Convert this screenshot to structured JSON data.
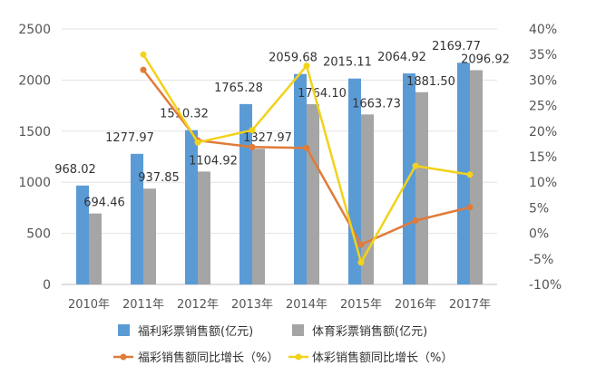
{
  "chart_data": {
    "type": "bar",
    "categories": [
      "2010年",
      "2011年",
      "2012年",
      "2013年",
      "2014年",
      "2015年",
      "2016年",
      "2017年"
    ],
    "y_left": {
      "ticks": [
        0,
        500,
        1000,
        1500,
        2000,
        2500
      ],
      "tick_labels": [
        "0",
        "500",
        "1000",
        "1500",
        "2000",
        "2500"
      ],
      "ylim": [
        0,
        2500
      ]
    },
    "y_right": {
      "ticks": [
        -10,
        -5,
        0,
        5,
        10,
        15,
        20,
        25,
        30,
        35,
        40
      ],
      "tick_labels": [
        "-10%",
        "-5%",
        "0%",
        "5%",
        "10%",
        "15%",
        "20%",
        "25%",
        "30%",
        "35%",
        "40%"
      ],
      "ylim": [
        -10,
        40
      ]
    },
    "grid": true,
    "legend_position": "bottom",
    "bar_series": [
      {
        "name": "福利彩票销售额(亿元)",
        "color": "#5B9BD5",
        "values": [
          968.02,
          1277.97,
          1510.32,
          1765.28,
          2059.68,
          2015.11,
          2064.92,
          2169.77
        ],
        "labels": [
          "968.02",
          "1277.97",
          "1510.32",
          "1765.28",
          "2059.68",
          "2015.11",
          "2064.92",
          "2169.77"
        ]
      },
      {
        "name": "体育彩票销售额(亿元)",
        "color": "#A5A5A5",
        "values": [
          694.46,
          937.85,
          1104.92,
          1327.97,
          1764.1,
          1663.73,
          1881.5,
          2096.92
        ],
        "labels": [
          "694.46",
          "937.85",
          "1104.92",
          "1327.97",
          "1764.10",
          "1663.73",
          "1881.50",
          "2096.92"
        ]
      }
    ],
    "line_series": [
      {
        "name": "福彩销售额同比增长（%）",
        "color": "#E07B39",
        "x": [
          "2011年",
          "2012年",
          "2013年",
          "2014年",
          "2015年",
          "2016年",
          "2017年"
        ],
        "values": [
          32,
          18.2,
          16.9,
          16.7,
          -2.2,
          2.5,
          5.1
        ]
      },
      {
        "name": "体彩销售额同比增长（%）",
        "color": "#F2D21B",
        "x": [
          "2011年",
          "2012年",
          "2013年",
          "2014年",
          "2015年",
          "2016年",
          "2017年"
        ],
        "values": [
          35,
          17.8,
          20.2,
          32.8,
          -5.7,
          13.2,
          11.5
        ]
      }
    ]
  }
}
